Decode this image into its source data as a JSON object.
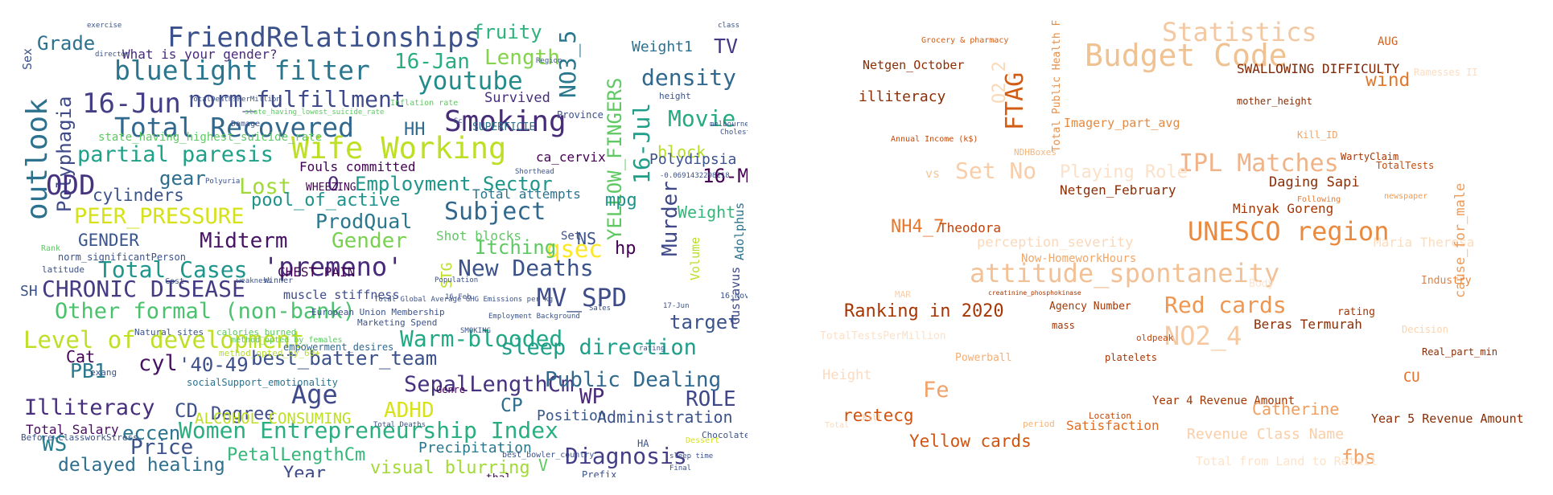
{
  "clouds": [
    {
      "words": [
        {
          "text": "FriendRelationships",
          "color": "#3b518b"
        },
        {
          "text": "bluelight filter",
          "color": "#2a768e"
        },
        {
          "text": "16-Jun",
          "color": "#433e85"
        },
        {
          "text": "norm_fulfillment",
          "color": "#3e4989"
        },
        {
          "text": "Total Recovered",
          "color": "#31688e"
        },
        {
          "text": "Smoking",
          "color": "#472c7a"
        },
        {
          "text": "Wife Working",
          "color": "#bddf26"
        },
        {
          "text": "partial paresis",
          "color": "#1fa088"
        },
        {
          "text": "outlook",
          "color": "#2c728e"
        },
        {
          "text": "Polyphagia",
          "color": "#3e4a89"
        },
        {
          "text": "ODD",
          "color": "#46337e"
        },
        {
          "text": "Grade",
          "color": "#2c728e"
        },
        {
          "text": "youtube",
          "color": "#228c8d"
        },
        {
          "text": "density",
          "color": "#31688e"
        },
        {
          "text": "Movie",
          "color": "#25ab82"
        },
        {
          "text": "NO3_5",
          "color": "#2a788e"
        },
        {
          "text": "YELLOW_FINGERS",
          "color": "#5ec962"
        },
        {
          "text": "16-Jul",
          "color": "#1f9e89"
        },
        {
          "text": "Murder",
          "color": "#3f4889"
        },
        {
          "text": "16-Jan",
          "color": "#27ad81"
        },
        {
          "text": "Length",
          "color": "#84d44b"
        },
        {
          "text": "fruity",
          "color": "#2db27d"
        },
        {
          "text": "Weight1",
          "color": "#2c718e"
        },
        {
          "text": "TV",
          "color": "#443983"
        },
        {
          "text": "PEER_PRESSURE",
          "color": "#d5e21a"
        },
        {
          "text": "Lost",
          "color": "#a0da39"
        },
        {
          "text": "gear",
          "color": "#2e6e8e"
        },
        {
          "text": "Employment Sector",
          "color": "#1f968b"
        },
        {
          "text": "O",
          "color": "#482979"
        },
        {
          "text": "16-Mar",
          "color": "#440154"
        },
        {
          "text": "cylinders",
          "color": "#3b528b"
        },
        {
          "text": "pool_of_active",
          "color": "#20928c"
        },
        {
          "text": "Subject",
          "color": "#31688e"
        },
        {
          "text": "mpg",
          "color": "#21918c"
        },
        {
          "text": "Weight",
          "color": "#35b779"
        },
        {
          "text": "GENDER",
          "color": "#39558c"
        },
        {
          "text": "Midterm",
          "color": "#471365"
        },
        {
          "text": "Gender",
          "color": "#7ad151"
        },
        {
          "text": "ProdQual",
          "color": "#2a788e"
        },
        {
          "text": "qsec",
          "color": "#fde725"
        },
        {
          "text": "hp",
          "color": "#440154"
        },
        {
          "text": "Total Cases",
          "color": "#1f968b"
        },
        {
          "text": "'premeno'",
          "color": "#472a7a"
        },
        {
          "text": "New Deaths",
          "color": "#3b528b"
        },
        {
          "text": "Itching",
          "color": "#5ec962"
        },
        {
          "text": "CHRONIC DISEASE",
          "color": "#443b84"
        },
        {
          "text": "Other formal (non-bank)",
          "color": "#4ac16d"
        },
        {
          "text": "MV_SPD",
          "color": "#3e4c8a"
        },
        {
          "text": "target",
          "color": "#3b528b"
        },
        {
          "text": "Level of development",
          "color": "#bddf26"
        },
        {
          "text": "Warm-blooded",
          "color": "#22a884"
        },
        {
          "text": "sleep direction",
          "color": "#1f9e89"
        },
        {
          "text": "cyl",
          "color": "#471164"
        },
        {
          "text": "'40-49'",
          "color": "#3c4f8a"
        },
        {
          "text": "best_batter_team",
          "color": "#3b528b"
        },
        {
          "text": "PB1",
          "color": "#2a788e"
        },
        {
          "text": "Cat",
          "color": "#440154"
        },
        {
          "text": "Age",
          "color": "#3e4a89"
        },
        {
          "text": "SepalLengthCm",
          "color": "#46327e"
        },
        {
          "text": "Public Dealing",
          "color": "#31688e"
        },
        {
          "text": "WP",
          "color": "#482878"
        },
        {
          "text": "ROLE",
          "color": "#3f4788"
        },
        {
          "text": "Illiteracy",
          "color": "#472f7d"
        },
        {
          "text": "CD",
          "color": "#3b528b"
        },
        {
          "text": "Degree",
          "color": "#3d4e8a"
        },
        {
          "text": "ADHD",
          "color": "#d8e219"
        },
        {
          "text": "CP",
          "color": "#2e6d8e"
        },
        {
          "text": "Women Entrepreneurship Index",
          "color": "#29af7f"
        },
        {
          "text": "WS",
          "color": "#287d8e"
        },
        {
          "text": "Price",
          "color": "#3b528b"
        },
        {
          "text": "eccen",
          "color": "#2b748e"
        },
        {
          "text": "PetalLengthCm",
          "color": "#35b779"
        },
        {
          "text": "Diagnosis",
          "color": "#433e85"
        },
        {
          "text": "delayed healing",
          "color": "#2e6f8e"
        },
        {
          "text": "Year",
          "color": "#3e4a89"
        },
        {
          "text": "visual blurring",
          "color": "#a2da37"
        },
        {
          "text": "V",
          "color": "#5ec962"
        },
        {
          "text": "Total Salary",
          "color": "#470d60"
        },
        {
          "text": "Precipitation",
          "color": "#2a788e"
        },
        {
          "text": "Administration",
          "color": "#3b528b"
        },
        {
          "text": "Position",
          "color": "#39568c"
        },
        {
          "text": "Survived",
          "color": "#472e7c"
        },
        {
          "text": "HH",
          "color": "#2f6b8e"
        },
        {
          "text": "block",
          "color": "#b5de2b"
        },
        {
          "text": "Polydipsia",
          "color": "#3b528b"
        },
        {
          "text": "Fouls committed",
          "color": "#440154"
        },
        {
          "text": "Total attempts",
          "color": "#2c728e"
        },
        {
          "text": "ca_cervix",
          "color": "#440154"
        },
        {
          "text": "NS",
          "color": "#3b528b"
        },
        {
          "text": "Shot blocks",
          "color": "#5ec962"
        },
        {
          "text": "Set",
          "color": "#3b528b"
        },
        {
          "text": "STG",
          "color": "#bddf26"
        },
        {
          "text": "Volume",
          "color": "#b8de29"
        },
        {
          "text": "Adolphus",
          "color": "#2c728e"
        },
        {
          "text": "Gustavus",
          "color": "#3e4989"
        },
        {
          "text": "SH",
          "color": "#3b528b"
        },
        {
          "text": "What is your gender?",
          "color": "#472a7a"
        },
        {
          "text": "CHEST PAIN",
          "color": "#440154"
        },
        {
          "text": "muscle stiffness",
          "color": "#3e4a89"
        },
        {
          "text": "state_having_highest_suicide_rate",
          "color": "#5ec962"
        },
        {
          "text": "WHEEZING",
          "color": "#440154"
        },
        {
          "text": "norm_significantPerson",
          "color": "#3b528b"
        },
        {
          "text": "latitude",
          "color": "#3b528b"
        },
        {
          "text": "Natural sites",
          "color": "#3b528b"
        },
        {
          "text": "method_opted_by_60+",
          "color": "#b5de2b"
        },
        {
          "text": "ALCOHOL CONSUMING",
          "color": "#bddf26"
        },
        {
          "text": "Genre",
          "color": "#440154"
        },
        {
          "text": "Marketing Spend",
          "color": "#3b528b"
        },
        {
          "text": "best_bowler_country",
          "color": "#3b528b"
        },
        {
          "text": "Chocolate",
          "color": "#3b528b"
        },
        {
          "text": "empowerment_desires",
          "color": "#31688e"
        },
        {
          "text": "calories_burned",
          "color": "#5ec962"
        },
        {
          "text": "socialSupport_emotionality",
          "color": "#2c728e"
        },
        {
          "text": "thal",
          "color": "#440154"
        },
        {
          "text": "Prefix",
          "color": "#3b528b"
        },
        {
          "text": "Would you rather spend less or more time online?",
          "color": "#5ec962"
        },
        {
          "text": "Before-ClassworkStress",
          "color": "#3b528b"
        },
        {
          "text": "European Union Membership",
          "color": "#3b528b"
        },
        {
          "text": "Dessert",
          "color": "#d8e219"
        },
        {
          "text": "SUPERFICIE",
          "color": "#2c728e"
        },
        {
          "text": "TotalDeathsPerMillion",
          "color": "#3b528b"
        },
        {
          "text": "state_having_lowest_suicide_rate",
          "color": "#5ec962"
        },
        {
          "text": "Total Deaths",
          "color": "#3b528b"
        },
        {
          "text": "Total Global Average GHG Emissions per kg",
          "color": "#3b528b"
        },
        {
          "text": "Employment Background",
          "color": "#3b528b"
        },
        {
          "text": "Cholesterol",
          "color": "#3b528b"
        },
        {
          "text": "Damage",
          "color": "#3b528b"
        },
        {
          "text": "exercise",
          "color": "#3b528b"
        },
        {
          "text": "melbourne",
          "color": "#3b528b"
        },
        {
          "text": "Sex",
          "color": "#3b528b"
        },
        {
          "text": "HA",
          "color": "#3b528b"
        },
        {
          "text": "exang",
          "color": "#3b528b"
        },
        {
          "text": "Inflation rate",
          "color": "#5ec962"
        },
        {
          "text": "Province",
          "color": "#3b528b"
        },
        {
          "text": "Sales",
          "color": "#3b528b"
        },
        {
          "text": "Region",
          "color": "#3b528b"
        },
        {
          "text": "Shorthead",
          "color": "#3b528b"
        },
        {
          "text": "height",
          "color": "#3b528b"
        },
        {
          "text": "sleep time",
          "color": "#3b528b"
        },
        {
          "text": "Rank",
          "color": "#5ec962"
        },
        {
          "text": "SMOKING",
          "color": "#3b528b"
        },
        {
          "text": "Final",
          "color": "#3b528b"
        },
        {
          "text": "Cost",
          "color": "#3b528b"
        },
        {
          "text": "weakness",
          "color": "#3b528b"
        },
        {
          "text": "Population",
          "color": "#3b528b"
        },
        {
          "text": "16-Feb",
          "color": "#3b528b"
        },
        {
          "text": "16-Nov",
          "color": "#3b528b"
        },
        {
          "text": "17-Jun",
          "color": "#3b528b"
        },
        {
          "text": "rating",
          "color": "#3b528b"
        },
        {
          "text": "class",
          "color": "#3b528b"
        },
        {
          "text": "director",
          "color": "#3b528b"
        },
        {
          "text": "Sc",
          "color": "#3b528b"
        },
        {
          "text": "-0.0691432298218",
          "color": "#3b528b"
        },
        {
          "text": "Polyuria",
          "color": "#3b528b"
        },
        {
          "text": "Winner",
          "color": "#3b528b"
        },
        {
          "text": "method_opted_by_females",
          "color": "#5ec962"
        }
      ]
    },
    {
      "words": [
        {
          "text": "Statistics",
          "color": "#f2c9a3"
        },
        {
          "text": "Budget Code",
          "color": "#f0c292"
        },
        {
          "text": "SWALLOWING DIFFICULTY",
          "color": "#7f2704"
        },
        {
          "text": "AUG",
          "color": "#d95e16"
        },
        {
          "text": "Netgen_October",
          "color": "#8c2d04"
        },
        {
          "text": "Grocery & pharmacy",
          "color": "#d65c15"
        },
        {
          "text": "illiteracy",
          "color": "#8c2d04"
        },
        {
          "text": "O2_2",
          "color": "#fbd8b6"
        },
        {
          "text": "FTAG",
          "color": "#d35c14"
        },
        {
          "text": "Total Public Health Facility",
          "color": "#e6904d"
        },
        {
          "text": "Ramesses II",
          "color": "#fcdcc0"
        },
        {
          "text": "wind",
          "color": "#e0792e"
        },
        {
          "text": "mother_height",
          "color": "#8c2d04"
        },
        {
          "text": "Annual Income (k$)",
          "color": "#c4490b"
        },
        {
          "text": "Imagery_part_avg",
          "color": "#e48a41"
        },
        {
          "text": "Kill_ID",
          "color": "#f2a462"
        },
        {
          "text": "NDHBoxes",
          "color": "#f5b57c"
        },
        {
          "text": "IPL Matches",
          "color": "#f0b387"
        },
        {
          "text": "Set No",
          "color": "#f8cda8"
        },
        {
          "text": "vs",
          "color": "#f7c597"
        },
        {
          "text": "Playing Role",
          "color": "#fbe1c9"
        },
        {
          "text": "WartyClaim",
          "color": "#a63603"
        },
        {
          "text": "TotalTests",
          "color": "#c24a0a"
        },
        {
          "text": "Daging Sapi",
          "color": "#8c2d04"
        },
        {
          "text": "Netgen_February",
          "color": "#8c2d04"
        },
        {
          "text": "Following",
          "color": "#e87b2f"
        },
        {
          "text": "newspaper",
          "color": "#f09c58"
        },
        {
          "text": "Minyak Goreng",
          "color": "#a63603"
        },
        {
          "text": "NH4_7",
          "color": "#e8772c"
        },
        {
          "text": "Theodora",
          "color": "#c04209"
        },
        {
          "text": "UNESCO region",
          "color": "#ea8a3f"
        },
        {
          "text": "perception_severity",
          "color": "#fbd8b9"
        },
        {
          "text": "Maria Theresa",
          "color": "#fcdcbd"
        },
        {
          "text": "Now-HomeworkHours",
          "color": "#f2a767"
        },
        {
          "text": "attitude_spontaneity",
          "color": "#f3c196"
        },
        {
          "text": "cause_for_male",
          "color": "#ef9a56"
        },
        {
          "text": "Industry",
          "color": "#e8813a"
        },
        {
          "text": "Body",
          "color": "#fde4cb"
        },
        {
          "text": "MAR",
          "color": "#f9cfa7"
        },
        {
          "text": "Ranking in 2020",
          "color": "#a63603"
        },
        {
          "text": "Agency Number",
          "color": "#a63603"
        },
        {
          "text": "Red cards",
          "color": "#ef9650"
        },
        {
          "text": "rating",
          "color": "#a63603"
        },
        {
          "text": "Beras Termurah",
          "color": "#8c2d04"
        },
        {
          "text": "Decision",
          "color": "#fbd3ad"
        },
        {
          "text": "NO2_4",
          "color": "#f7c9a0"
        },
        {
          "text": "mass",
          "color": "#a63603"
        },
        {
          "text": "oldpeak",
          "color": "#c3460a"
        },
        {
          "text": "TotalTestsPerMillion",
          "color": "#fde0c5"
        },
        {
          "text": "Powerball",
          "color": "#f7ad6e"
        },
        {
          "text": "platelets",
          "color": "#a63603"
        },
        {
          "text": "Real_part_min",
          "color": "#8c2d04"
        },
        {
          "text": "Height",
          "color": "#fbdbc1"
        },
        {
          "text": "Fe",
          "color": "#f0a26a"
        },
        {
          "text": "CU",
          "color": "#e4702a"
        },
        {
          "text": "Year 4 Revenue Amount",
          "color": "#a63603"
        },
        {
          "text": "restecg",
          "color": "#d4520d"
        },
        {
          "text": "Location",
          "color": "#c4480a"
        },
        {
          "text": "Catherine",
          "color": "#ef9f60"
        },
        {
          "text": "Satisfaction",
          "color": "#e06c22"
        },
        {
          "text": "period",
          "color": "#f4b37b"
        },
        {
          "text": "Year 5 Revenue Amount",
          "color": "#8c2d04"
        },
        {
          "text": "Yellow cards",
          "color": "#cf5410"
        },
        {
          "text": "Revenue Class Name",
          "color": "#fbcea6"
        },
        {
          "text": "fbs",
          "color": "#f3a163"
        },
        {
          "text": "Total from Land to Retail",
          "color": "#fde3c9"
        },
        {
          "text": "Kill",
          "color": "#f9cda5"
        },
        {
          "text": "Total",
          "color": "#fdd9b6"
        },
        {
          "text": "creatinine_phosphokinase",
          "color": "#a63603"
        }
      ]
    }
  ]
}
